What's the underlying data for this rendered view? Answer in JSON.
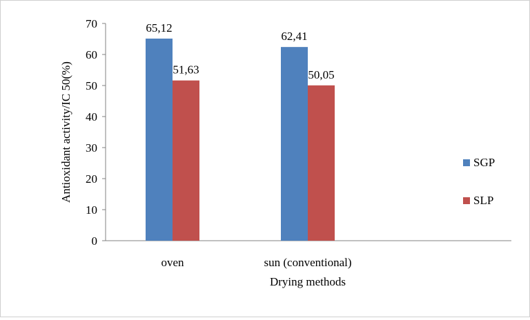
{
  "chart_data": {
    "type": "bar",
    "categories": [
      "oven",
      "sun (conventional)"
    ],
    "series": [
      {
        "name": "SGP",
        "values": [
          65.12,
          62.41
        ],
        "labels": [
          "65,12",
          "62,41"
        ]
      },
      {
        "name": "SLP",
        "values": [
          51.63,
          50.05
        ],
        "labels": [
          "51,63",
          "50,05"
        ]
      }
    ],
    "xlabel": "Drying methods",
    "ylabel": "Antioxidant activity/IC 50(%)",
    "ylim": [
      0,
      70
    ],
    "yticks": [
      0,
      10,
      20,
      30,
      40,
      50,
      60,
      70
    ],
    "grid": false,
    "legend_position": "right",
    "colors": {
      "SGP": "#4f81bd",
      "SLP": "#c0504d"
    }
  }
}
